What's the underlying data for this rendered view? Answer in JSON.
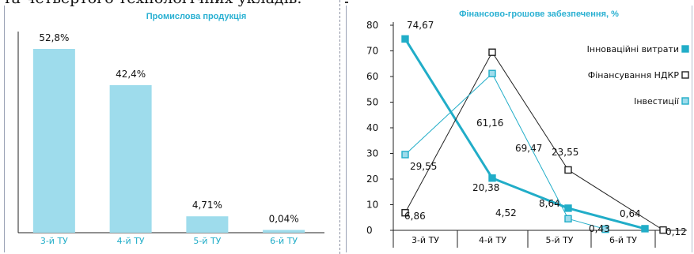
{
  "fragment_text": "та четвертого технологічних укладів.",
  "colors": {
    "cyan": "#21adc8",
    "light_cyan": "#9edcec",
    "black": "#222222",
    "title": "#29b0d2"
  },
  "chart_data": [
    {
      "type": "bar",
      "title": "Промислова продукція",
      "categories": [
        "3-й ТУ",
        "4-й ТУ",
        "5-й ТУ",
        "6-й ТУ"
      ],
      "values": [
        52.8,
        42.4,
        4.71,
        0.04
      ],
      "value_labels": [
        "52,8%",
        "42,4%",
        "4,71%",
        "0,04%"
      ],
      "ylim": [
        0,
        60
      ],
      "grid": false
    },
    {
      "type": "line",
      "title": "Фінансово-грошове забезпечення, %",
      "categories": [
        "3-й ТУ",
        "4-й ТУ",
        "5-й ТУ",
        "6-й ТУ"
      ],
      "ylim": [
        0,
        80
      ],
      "yticks": [
        "0",
        "10",
        "20",
        "30",
        "40",
        "50",
        "60",
        "70",
        "80"
      ],
      "legend_position": "right",
      "series": [
        {
          "name": "Інноваційні витрати",
          "values": [
            74.67,
            20.38,
            8.64,
            0.64
          ],
          "labels": [
            "74,67",
            "20,38",
            "8,64",
            "0,64"
          ]
        },
        {
          "name": "Фінансування НДКР",
          "values": [
            6.86,
            69.47,
            23.55,
            0.12
          ],
          "labels": [
            "6,86",
            "69,47",
            "23,55",
            "0,12"
          ]
        },
        {
          "name": "Інвестиції",
          "values": [
            29.55,
            61.16,
            4.52,
            0.43
          ],
          "labels": [
            "29,55",
            "61,16",
            "4,52",
            "0,43"
          ]
        }
      ]
    }
  ]
}
